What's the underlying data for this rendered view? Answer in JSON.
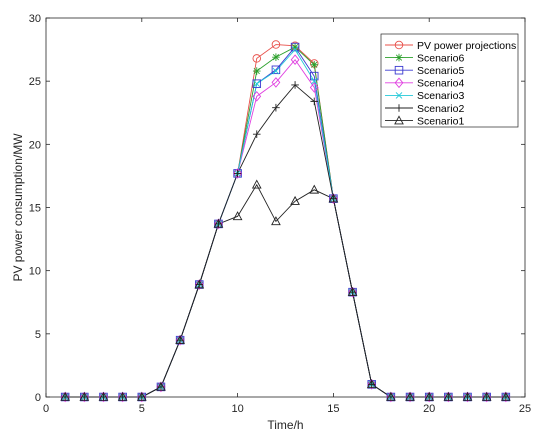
{
  "chart_data": {
    "type": "line",
    "xlabel": "Time/h",
    "ylabel": "PV power consumption/MW",
    "xlim": [
      0,
      25
    ],
    "ylim": [
      0,
      30
    ],
    "xticks": [
      "0",
      "5",
      "10",
      "15",
      "20",
      "25"
    ],
    "yticks": [
      "0",
      "5",
      "10",
      "15",
      "20",
      "25",
      "30"
    ],
    "grid": false,
    "legend_position": "top-right",
    "x": [
      1,
      2,
      3,
      4,
      5,
      6,
      7,
      8,
      9,
      10,
      11,
      12,
      13,
      14,
      15,
      16,
      17,
      18,
      19,
      20,
      21,
      22,
      23,
      24
    ],
    "series": [
      {
        "name": "PV power projections",
        "color": "#e8504a",
        "marker": "circle",
        "values": [
          0,
          0,
          0,
          0,
          0,
          0.8,
          4.5,
          8.9,
          13.7,
          17.7,
          26.8,
          27.9,
          27.8,
          26.4,
          15.7,
          8.3,
          1.0,
          0,
          0,
          0,
          0,
          0,
          0,
          0
        ]
      },
      {
        "name": "Scenario6",
        "color": "#2ca02c",
        "marker": "star",
        "values": [
          0,
          0,
          0,
          0,
          0,
          0.8,
          4.5,
          8.9,
          13.7,
          17.7,
          25.8,
          26.9,
          27.7,
          26.3,
          15.7,
          8.3,
          1.0,
          0,
          0,
          0,
          0,
          0,
          0,
          0
        ]
      },
      {
        "name": "Scenario5",
        "color": "#3a3ad0",
        "marker": "square",
        "values": [
          0,
          0,
          0,
          0,
          0,
          0.8,
          4.5,
          8.9,
          13.7,
          17.7,
          24.8,
          25.9,
          27.7,
          25.4,
          15.7,
          8.3,
          1.0,
          0,
          0,
          0,
          0,
          0,
          0,
          0
        ]
      },
      {
        "name": "Scenario4",
        "color": "#e040e0",
        "marker": "diamond",
        "values": [
          0,
          0,
          0,
          0,
          0,
          0.8,
          4.5,
          8.9,
          13.7,
          17.7,
          23.8,
          24.9,
          26.7,
          24.5,
          15.7,
          8.3,
          1.0,
          0,
          0,
          0,
          0,
          0,
          0,
          0
        ]
      },
      {
        "name": "Scenario3",
        "color": "#22c8d8",
        "marker": "x",
        "values": [
          0,
          0,
          0,
          0,
          0,
          0.8,
          4.5,
          8.9,
          13.7,
          17.7,
          24.8,
          25.8,
          27.5,
          25.0,
          15.7,
          8.3,
          1.0,
          0,
          0,
          0,
          0,
          0,
          0,
          0
        ]
      },
      {
        "name": "Scenario2",
        "color": "#222222",
        "marker": "plus",
        "values": [
          0,
          0,
          0,
          0,
          0,
          0.8,
          4.5,
          8.9,
          13.7,
          17.7,
          20.8,
          22.9,
          24.7,
          23.4,
          15.7,
          8.3,
          1.0,
          0,
          0,
          0,
          0,
          0,
          0,
          0
        ]
      },
      {
        "name": "Scenario1",
        "color": "#222222",
        "marker": "triangle",
        "values": [
          0,
          0,
          0,
          0,
          0,
          0.8,
          4.5,
          8.9,
          13.7,
          14.3,
          16.8,
          13.9,
          15.5,
          16.4,
          15.7,
          8.3,
          1.0,
          0,
          0,
          0,
          0,
          0,
          0,
          0
        ]
      }
    ]
  }
}
